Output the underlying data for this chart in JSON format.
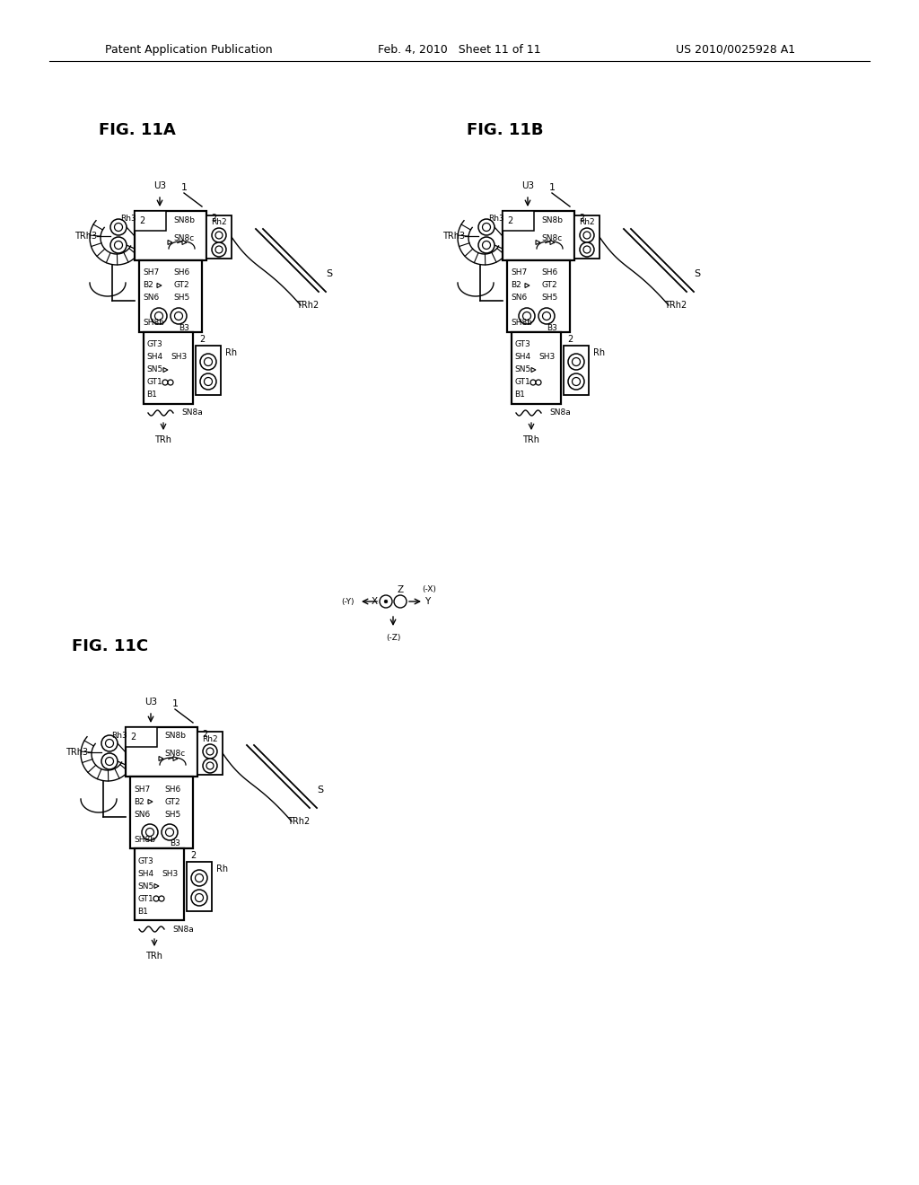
{
  "header_left": "Patent Application Publication",
  "header_mid": "Feb. 4, 2010   Sheet 11 of 11",
  "header_right": "US 2010/0025928 A1",
  "fig_11a_label": "FIG. 11A",
  "fig_11b_label": "FIG. 11B",
  "fig_11c_label": "FIG. 11C",
  "bg_color": "#ffffff"
}
